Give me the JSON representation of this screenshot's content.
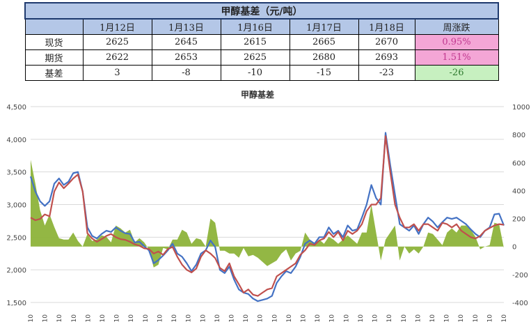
{
  "table": {
    "title": "甲醇基差（元/吨）",
    "headers": [
      "",
      "1月12日",
      "1月13日",
      "1月16日",
      "1月17日",
      "1月18日",
      "周涨跌"
    ],
    "rows": [
      {
        "label": "现货",
        "values": [
          "2625",
          "2645",
          "2615",
          "2665",
          "2670"
        ],
        "change": "0.95%",
        "change_color": "#f4a6d6"
      },
      {
        "label": "期货",
        "values": [
          "2622",
          "2653",
          "2625",
          "2680",
          "2693"
        ],
        "change": "1.51%",
        "change_color": "#f4a6d6"
      },
      {
        "label": "基差",
        "values": [
          "3",
          "-8",
          "-10",
          "-15",
          "-23"
        ],
        "change": "-26",
        "change_color": "#c7f0c0"
      }
    ]
  },
  "chart_data": {
    "type": "line",
    "title": "甲醇基差",
    "colors": {
      "spot": "#4472c4",
      "futures": "#c0504d",
      "basis": "#8db33a"
    },
    "y_left": {
      "min": 1500,
      "max": 4500,
      "ticks": [
        "1,500",
        "2,000",
        "2,500",
        "3,000",
        "3,500",
        "4,000",
        "4,500"
      ]
    },
    "y_right": {
      "min": -400,
      "max": 1000,
      "ticks": [
        "-400",
        "-200",
        "0",
        "200",
        "400",
        "600",
        "800",
        "1000"
      ]
    },
    "x_tick_label": "-10",
    "x_tick_count": 34,
    "x_index_max": 100,
    "series": [
      {
        "key": "spot",
        "axis": "left",
        "type": "line",
        "points": [
          [
            0,
            3430
          ],
          [
            1,
            3200
          ],
          [
            2,
            3050
          ],
          [
            3,
            2980
          ],
          [
            4,
            3050
          ],
          [
            5,
            3320
          ],
          [
            6,
            3400
          ],
          [
            7,
            3300
          ],
          [
            8,
            3350
          ],
          [
            9,
            3480
          ],
          [
            10,
            3500
          ],
          [
            11,
            3200
          ],
          [
            12,
            2650
          ],
          [
            13,
            2520
          ],
          [
            14,
            2480
          ],
          [
            15,
            2550
          ],
          [
            16,
            2600
          ],
          [
            17,
            2580
          ],
          [
            18,
            2650
          ],
          [
            19,
            2600
          ],
          [
            20,
            2560
          ],
          [
            21,
            2550
          ],
          [
            22,
            2420
          ],
          [
            23,
            2430
          ],
          [
            24,
            2360
          ],
          [
            25,
            2300
          ],
          [
            26,
            2100
          ],
          [
            27,
            2150
          ],
          [
            28,
            2220
          ],
          [
            29,
            2300
          ],
          [
            30,
            2400
          ],
          [
            31,
            2250
          ],
          [
            32,
            2200
          ],
          [
            33,
            2100
          ],
          [
            34,
            1980
          ],
          [
            35,
            2080
          ],
          [
            36,
            2250
          ],
          [
            37,
            2300
          ],
          [
            38,
            2450
          ],
          [
            39,
            2350
          ],
          [
            40,
            2000
          ],
          [
            41,
            1950
          ],
          [
            42,
            2050
          ],
          [
            43,
            1850
          ],
          [
            44,
            1700
          ],
          [
            45,
            1650
          ],
          [
            46,
            1630
          ],
          [
            47,
            1560
          ],
          [
            48,
            1520
          ],
          [
            49,
            1540
          ],
          [
            50,
            1560
          ],
          [
            51,
            1600
          ],
          [
            52,
            1800
          ],
          [
            53,
            1900
          ],
          [
            54,
            1980
          ],
          [
            55,
            1950
          ],
          [
            56,
            2050
          ],
          [
            57,
            2200
          ],
          [
            58,
            2400
          ],
          [
            59,
            2450
          ],
          [
            60,
            2400
          ],
          [
            61,
            2500
          ],
          [
            62,
            2500
          ],
          [
            63,
            2650
          ],
          [
            64,
            2550
          ],
          [
            65,
            2600
          ],
          [
            66,
            2500
          ],
          [
            67,
            2680
          ],
          [
            68,
            2600
          ],
          [
            69,
            2620
          ],
          [
            70,
            2800
          ],
          [
            71,
            3000
          ],
          [
            72,
            3300
          ],
          [
            73,
            3100
          ],
          [
            74,
            3000
          ],
          [
            75,
            4100
          ],
          [
            76,
            3600
          ],
          [
            77,
            3150
          ],
          [
            78,
            2700
          ],
          [
            79,
            2650
          ],
          [
            80,
            2600
          ],
          [
            81,
            2680
          ],
          [
            82,
            2550
          ],
          [
            83,
            2700
          ],
          [
            84,
            2800
          ],
          [
            85,
            2740
          ],
          [
            86,
            2650
          ],
          [
            87,
            2730
          ],
          [
            88,
            2800
          ],
          [
            89,
            2780
          ],
          [
            90,
            2800
          ],
          [
            91,
            2750
          ],
          [
            92,
            2700
          ],
          [
            93,
            2620
          ],
          [
            94,
            2550
          ],
          [
            95,
            2500
          ],
          [
            96,
            2600
          ],
          [
            97,
            2650
          ],
          [
            98,
            2850
          ],
          [
            99,
            2860
          ],
          [
            100,
            2680
          ]
        ]
      },
      {
        "key": "futures",
        "axis": "left",
        "type": "line",
        "points": [
          [
            0,
            2800
          ],
          [
            1,
            2760
          ],
          [
            2,
            2780
          ],
          [
            3,
            2850
          ],
          [
            4,
            2820
          ],
          [
            5,
            3200
          ],
          [
            6,
            3340
          ],
          [
            7,
            3250
          ],
          [
            8,
            3320
          ],
          [
            9,
            3400
          ],
          [
            10,
            3460
          ],
          [
            11,
            3200
          ],
          [
            12,
            2560
          ],
          [
            13,
            2480
          ],
          [
            14,
            2430
          ],
          [
            15,
            2470
          ],
          [
            16,
            2520
          ],
          [
            17,
            2550
          ],
          [
            18,
            2500
          ],
          [
            19,
            2470
          ],
          [
            20,
            2460
          ],
          [
            21,
            2430
          ],
          [
            22,
            2390
          ],
          [
            23,
            2370
          ],
          [
            24,
            2330
          ],
          [
            25,
            2320
          ],
          [
            26,
            2250
          ],
          [
            27,
            2280
          ],
          [
            28,
            2230
          ],
          [
            29,
            2320
          ],
          [
            30,
            2350
          ],
          [
            31,
            2200
          ],
          [
            32,
            2080
          ],
          [
            33,
            2000
          ],
          [
            34,
            1960
          ],
          [
            35,
            2020
          ],
          [
            36,
            2200
          ],
          [
            37,
            2300
          ],
          [
            38,
            2250
          ],
          [
            39,
            2180
          ],
          [
            40,
            2030
          ],
          [
            41,
            1980
          ],
          [
            42,
            2100
          ],
          [
            43,
            1900
          ],
          [
            44,
            1780
          ],
          [
            45,
            1650
          ],
          [
            46,
            1700
          ],
          [
            47,
            1620
          ],
          [
            48,
            1600
          ],
          [
            49,
            1650
          ],
          [
            50,
            1700
          ],
          [
            51,
            1720
          ],
          [
            52,
            1900
          ],
          [
            53,
            1950
          ],
          [
            54,
            2000
          ],
          [
            55,
            2050
          ],
          [
            56,
            2100
          ],
          [
            57,
            2230
          ],
          [
            58,
            2300
          ],
          [
            59,
            2400
          ],
          [
            60,
            2380
          ],
          [
            61,
            2450
          ],
          [
            62,
            2480
          ],
          [
            63,
            2580
          ],
          [
            64,
            2500
          ],
          [
            65,
            2580
          ],
          [
            66,
            2450
          ],
          [
            67,
            2600
          ],
          [
            68,
            2550
          ],
          [
            69,
            2600
          ],
          [
            70,
            2700
          ],
          [
            71,
            2900
          ],
          [
            72,
            3000
          ],
          [
            73,
            3000
          ],
          [
            74,
            3100
          ],
          [
            75,
            4050
          ],
          [
            76,
            3500
          ],
          [
            77,
            3000
          ],
          [
            78,
            2800
          ],
          [
            79,
            2650
          ],
          [
            80,
            2650
          ],
          [
            81,
            2700
          ],
          [
            82,
            2600
          ],
          [
            83,
            2700
          ],
          [
            84,
            2700
          ],
          [
            85,
            2650
          ],
          [
            86,
            2600
          ],
          [
            87,
            2720
          ],
          [
            88,
            2700
          ],
          [
            89,
            2650
          ],
          [
            90,
            2700
          ],
          [
            91,
            2600
          ],
          [
            92,
            2550
          ],
          [
            93,
            2500
          ],
          [
            94,
            2480
          ],
          [
            95,
            2520
          ],
          [
            96,
            2600
          ],
          [
            97,
            2640
          ],
          [
            98,
            2680
          ],
          [
            99,
            2700
          ],
          [
            100,
            2690
          ]
        ]
      },
      {
        "key": "basis",
        "axis": "right",
        "type": "area",
        "points": [
          [
            0,
            620
          ],
          [
            1,
            450
          ],
          [
            2,
            260
          ],
          [
            3,
            150
          ],
          [
            4,
            230
          ],
          [
            5,
            140
          ],
          [
            6,
            60
          ],
          [
            7,
            50
          ],
          [
            8,
            50
          ],
          [
            9,
            100
          ],
          [
            10,
            40
          ],
          [
            11,
            0
          ],
          [
            12,
            90
          ],
          [
            13,
            40
          ],
          [
            14,
            50
          ],
          [
            15,
            80
          ],
          [
            16,
            70
          ],
          [
            17,
            30
          ],
          [
            18,
            150
          ],
          [
            19,
            130
          ],
          [
            20,
            100
          ],
          [
            21,
            120
          ],
          [
            22,
            30
          ],
          [
            23,
            60
          ],
          [
            24,
            30
          ],
          [
            25,
            -20
          ],
          [
            26,
            -150
          ],
          [
            27,
            -130
          ],
          [
            28,
            -10
          ],
          [
            29,
            -20
          ],
          [
            30,
            50
          ],
          [
            31,
            50
          ],
          [
            32,
            120
          ],
          [
            33,
            100
          ],
          [
            34,
            20
          ],
          [
            35,
            60
          ],
          [
            36,
            50
          ],
          [
            37,
            0
          ],
          [
            38,
            200
          ],
          [
            39,
            170
          ],
          [
            40,
            -30
          ],
          [
            41,
            -30
          ],
          [
            42,
            -50
          ],
          [
            43,
            -50
          ],
          [
            44,
            -80
          ],
          [
            45,
            -10
          ],
          [
            46,
            -70
          ],
          [
            47,
            -60
          ],
          [
            48,
            -80
          ],
          [
            49,
            -110
          ],
          [
            50,
            -140
          ],
          [
            51,
            -120
          ],
          [
            52,
            -100
          ],
          [
            53,
            -50
          ],
          [
            54,
            -20
          ],
          [
            55,
            -100
          ],
          [
            56,
            -50
          ],
          [
            57,
            -30
          ],
          [
            58,
            100
          ],
          [
            59,
            50
          ],
          [
            60,
            20
          ],
          [
            61,
            50
          ],
          [
            62,
            20
          ],
          [
            63,
            70
          ],
          [
            64,
            50
          ],
          [
            65,
            20
          ],
          [
            66,
            50
          ],
          [
            67,
            80
          ],
          [
            68,
            50
          ],
          [
            69,
            20
          ],
          [
            70,
            100
          ],
          [
            71,
            100
          ],
          [
            72,
            300
          ],
          [
            73,
            100
          ],
          [
            74,
            -100
          ],
          [
            75,
            50
          ],
          [
            76,
            100
          ],
          [
            77,
            150
          ],
          [
            78,
            -100
          ],
          [
            79,
            0
          ],
          [
            80,
            -50
          ],
          [
            81,
            -20
          ],
          [
            82,
            -50
          ],
          [
            83,
            0
          ],
          [
            84,
            100
          ],
          [
            85,
            90
          ],
          [
            86,
            50
          ],
          [
            87,
            10
          ],
          [
            88,
            100
          ],
          [
            89,
            130
          ],
          [
            90,
            100
          ],
          [
            91,
            150
          ],
          [
            92,
            150
          ],
          [
            93,
            120
          ],
          [
            94,
            70
          ],
          [
            95,
            -20
          ],
          [
            96,
            0
          ],
          [
            97,
            10
          ],
          [
            98,
            170
          ],
          [
            99,
            160
          ],
          [
            100,
            -10
          ]
        ]
      }
    ]
  }
}
